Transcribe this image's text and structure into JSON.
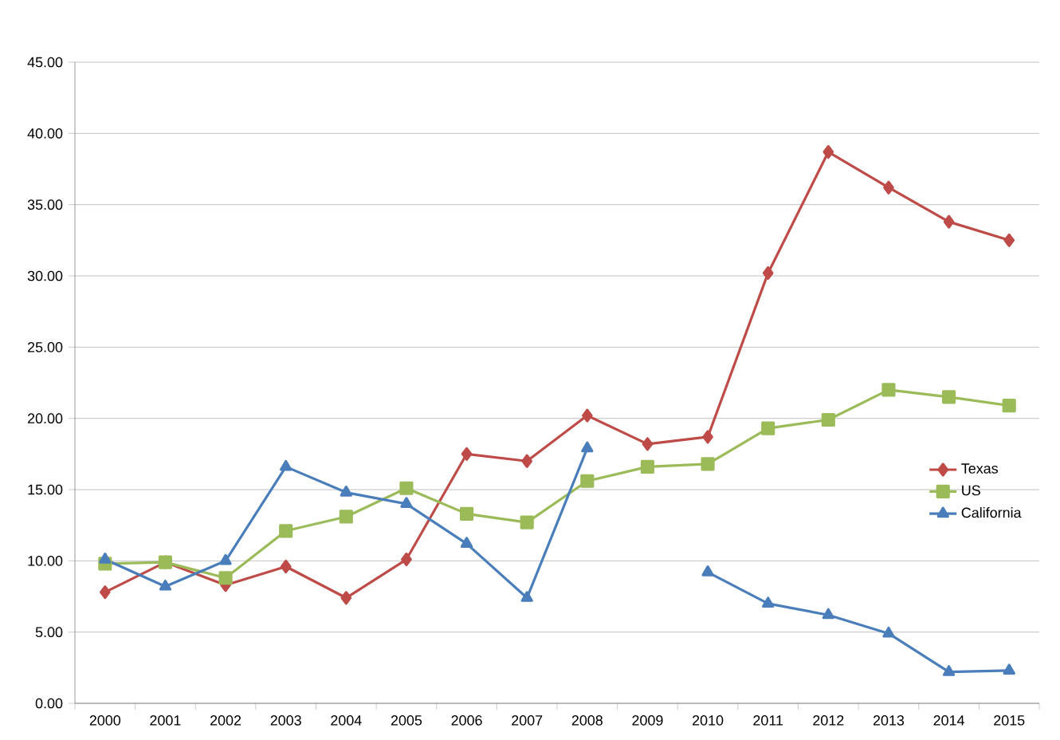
{
  "chart_data": {
    "type": "line",
    "categories": [
      "2000",
      "2001",
      "2002",
      "2003",
      "2004",
      "2005",
      "2006",
      "2007",
      "2008",
      "2009",
      "2010",
      "2011",
      "2012",
      "2013",
      "2014",
      "2015"
    ],
    "series": [
      {
        "name": "Texas",
        "color": "#be4b48",
        "marker": "diamond",
        "values": [
          7.8,
          9.9,
          8.3,
          9.6,
          7.4,
          10.1,
          17.5,
          17.0,
          20.2,
          18.2,
          18.7,
          30.2,
          38.7,
          36.2,
          33.8,
          32.5
        ]
      },
      {
        "name": "US",
        "color": "#9bbb59",
        "marker": "square",
        "values": [
          9.8,
          9.9,
          8.8,
          12.1,
          13.1,
          15.1,
          13.3,
          12.7,
          15.6,
          16.6,
          16.8,
          19.3,
          19.9,
          22.0,
          21.5,
          20.9
        ]
      },
      {
        "name": "California",
        "color": "#4a7ebb",
        "marker": "triangle",
        "values": [
          10.1,
          8.2,
          10.0,
          16.6,
          14.8,
          14.0,
          11.2,
          7.4,
          17.9,
          null,
          9.2,
          7.0,
          6.2,
          4.9,
          2.2,
          2.3
        ]
      }
    ],
    "ylim": [
      0,
      45
    ],
    "yticks": [
      {
        "value": 0,
        "label": "0.00"
      },
      {
        "value": 5,
        "label": "5.00"
      },
      {
        "value": 10,
        "label": "10.00"
      },
      {
        "value": 15,
        "label": "15.00"
      },
      {
        "value": 20,
        "label": "20.00"
      },
      {
        "value": 25,
        "label": "25.00"
      },
      {
        "value": 30,
        "label": "30.00"
      },
      {
        "value": 35,
        "label": "35.00"
      },
      {
        "value": 40,
        "label": "40.00"
      },
      {
        "value": 45,
        "label": "45.00"
      }
    ],
    "grid": "y",
    "legend": "right",
    "line_style": "solid"
  }
}
